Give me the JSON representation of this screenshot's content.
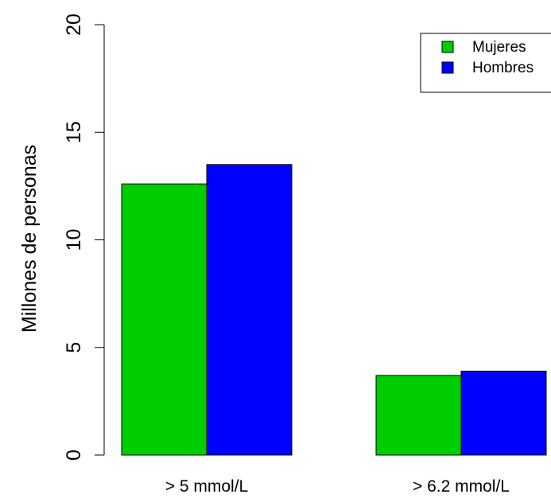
{
  "chart_data": {
    "type": "bar",
    "categories": [
      "> 5 mmol/L",
      "> 6.2 mmol/L"
    ],
    "series": [
      {
        "name": "Mujeres",
        "values": [
          12.6,
          3.7
        ],
        "color": "#00cd00"
      },
      {
        "name": "Hombres",
        "values": [
          13.5,
          3.9
        ],
        "color": "#0000ff"
      }
    ],
    "ylabel": "Millones de personas",
    "ylim": [
      0,
      20
    ],
    "yticks": [
      "0",
      "5",
      "10",
      "15",
      "20"
    ],
    "grid": false,
    "legend_position": "top-right"
  }
}
